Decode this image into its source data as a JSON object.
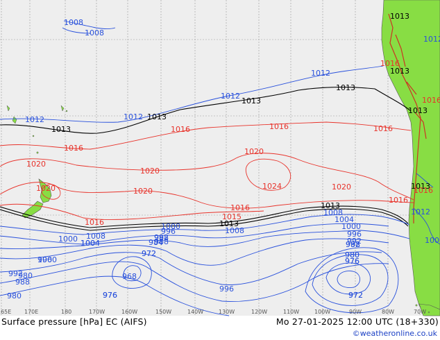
{
  "footer": {
    "title": "Surface pressure [hPa] EC (AIFS)",
    "datetime": "Mo 27-01-2025 12:00 UTC (18+330)",
    "credit": "©weatheronline.co.uk"
  },
  "axis": {
    "lon_ticks": [
      "165E",
      "170E",
      "180",
      "170W",
      "160W",
      "150W",
      "140W",
      "130W",
      "120W",
      "110W",
      "100W",
      "90W",
      "80W",
      "70W"
    ]
  },
  "colors": {
    "background": "#eeeeee",
    "land": "#88dd44",
    "high_isobar": "#e8322a",
    "low_isobar": "#2850dc",
    "standard_isobar": "#000000",
    "grid": "#9a9a9a"
  },
  "isobar_labels": {
    "blue": [
      "1008",
      "1008",
      "1012",
      "1012",
      "1012",
      "1012",
      "1012",
      "1008",
      "1004",
      "1000",
      "996",
      "992",
      "988",
      "980",
      "976",
      "972",
      "1000",
      "1004",
      "1008",
      "996",
      "992",
      "988",
      "984",
      "980",
      "976",
      "972",
      "968",
      "972",
      "976",
      "980",
      "988",
      "992",
      "996",
      "1000",
      "1004",
      "1008",
      "1000",
      "996",
      "992",
      "988",
      "980",
      "976",
      "972",
      "1012",
      "1000"
    ],
    "black": [
      "1013",
      "1013",
      "1013",
      "1013",
      "1013",
      "1013",
      "1013",
      "1013",
      "1013",
      "1013"
    ],
    "red": [
      "1016",
      "1016",
      "1016",
      "1016",
      "1020",
      "1020",
      "1020",
      "1020",
      "1024",
      "1020",
      "1016",
      "1016",
      "1020",
      "1016",
      "1016",
      "1015",
      "1016",
      "1016"
    ]
  }
}
